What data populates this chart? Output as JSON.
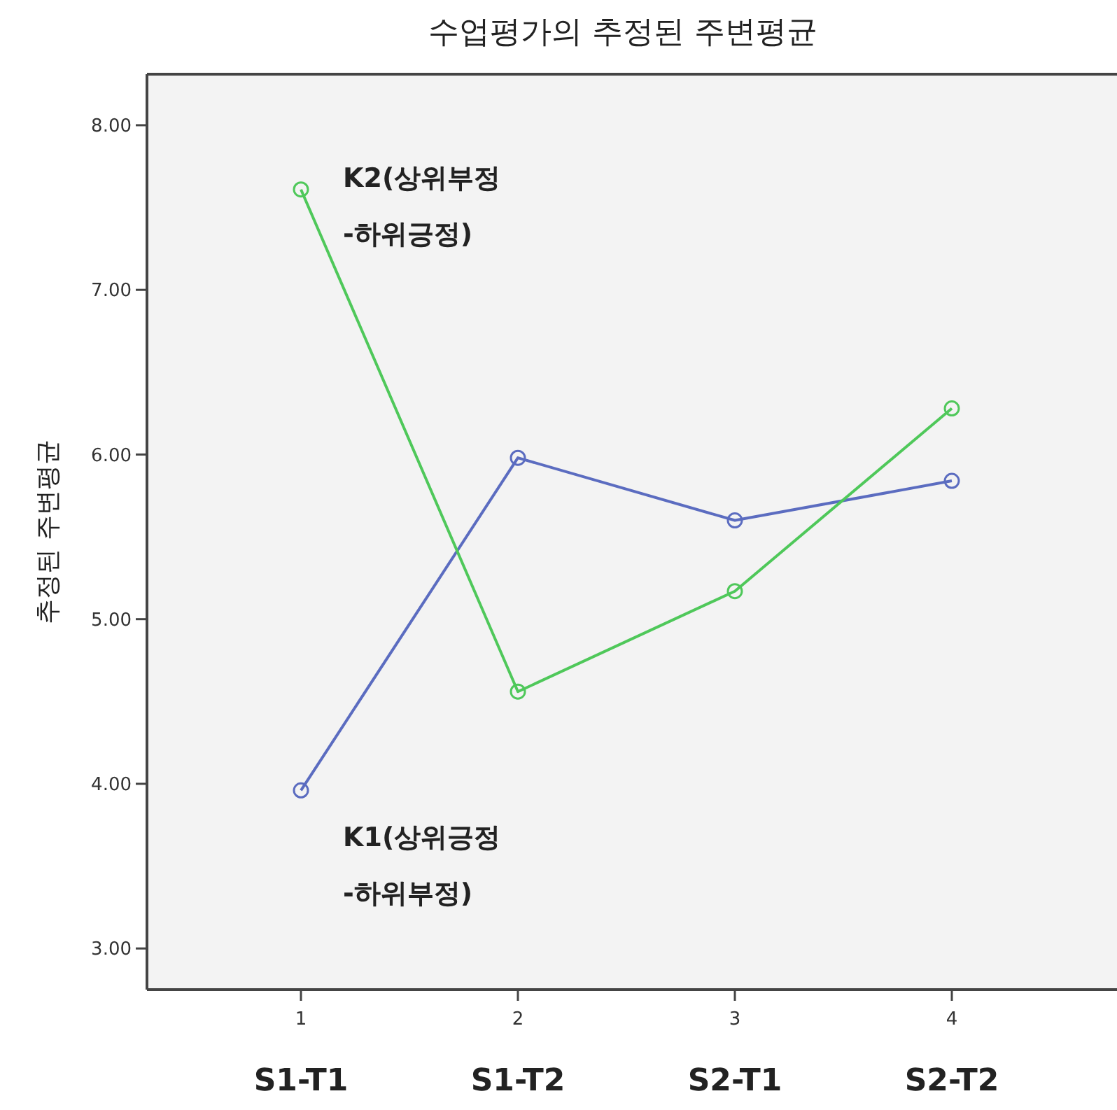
{
  "chart_data": {
    "type": "line",
    "title": "수업평가의 추정된 주변평균",
    "ylabel": "추정된 주변평균",
    "categories": [
      "1",
      "2",
      "3",
      "4"
    ],
    "series": [
      {
        "name": "K1(상위긍정 -하위부정)",
        "color": "#5b6cc0",
        "values": [
          3.96,
          5.98,
          5.6,
          5.84
        ]
      },
      {
        "name": "K2(상위부정 -하위긍정)",
        "color": "#4fc85a",
        "values": [
          7.61,
          4.56,
          5.17,
          6.28
        ]
      }
    ],
    "ylim": [
      2.75,
      8.31
    ],
    "yticks": [
      {
        "value": 3,
        "label": "3.00"
      },
      {
        "value": 4,
        "label": "4.00"
      },
      {
        "value": 5,
        "label": "5.00"
      },
      {
        "value": 6,
        "label": "6.00"
      },
      {
        "value": 7,
        "label": "7.00"
      },
      {
        "value": 8,
        "label": "8.00"
      }
    ],
    "marker": "circle",
    "grid": false,
    "annotations": [
      "S1-T1",
      "S1-T2",
      "S2-T1",
      "S2-T2"
    ]
  }
}
